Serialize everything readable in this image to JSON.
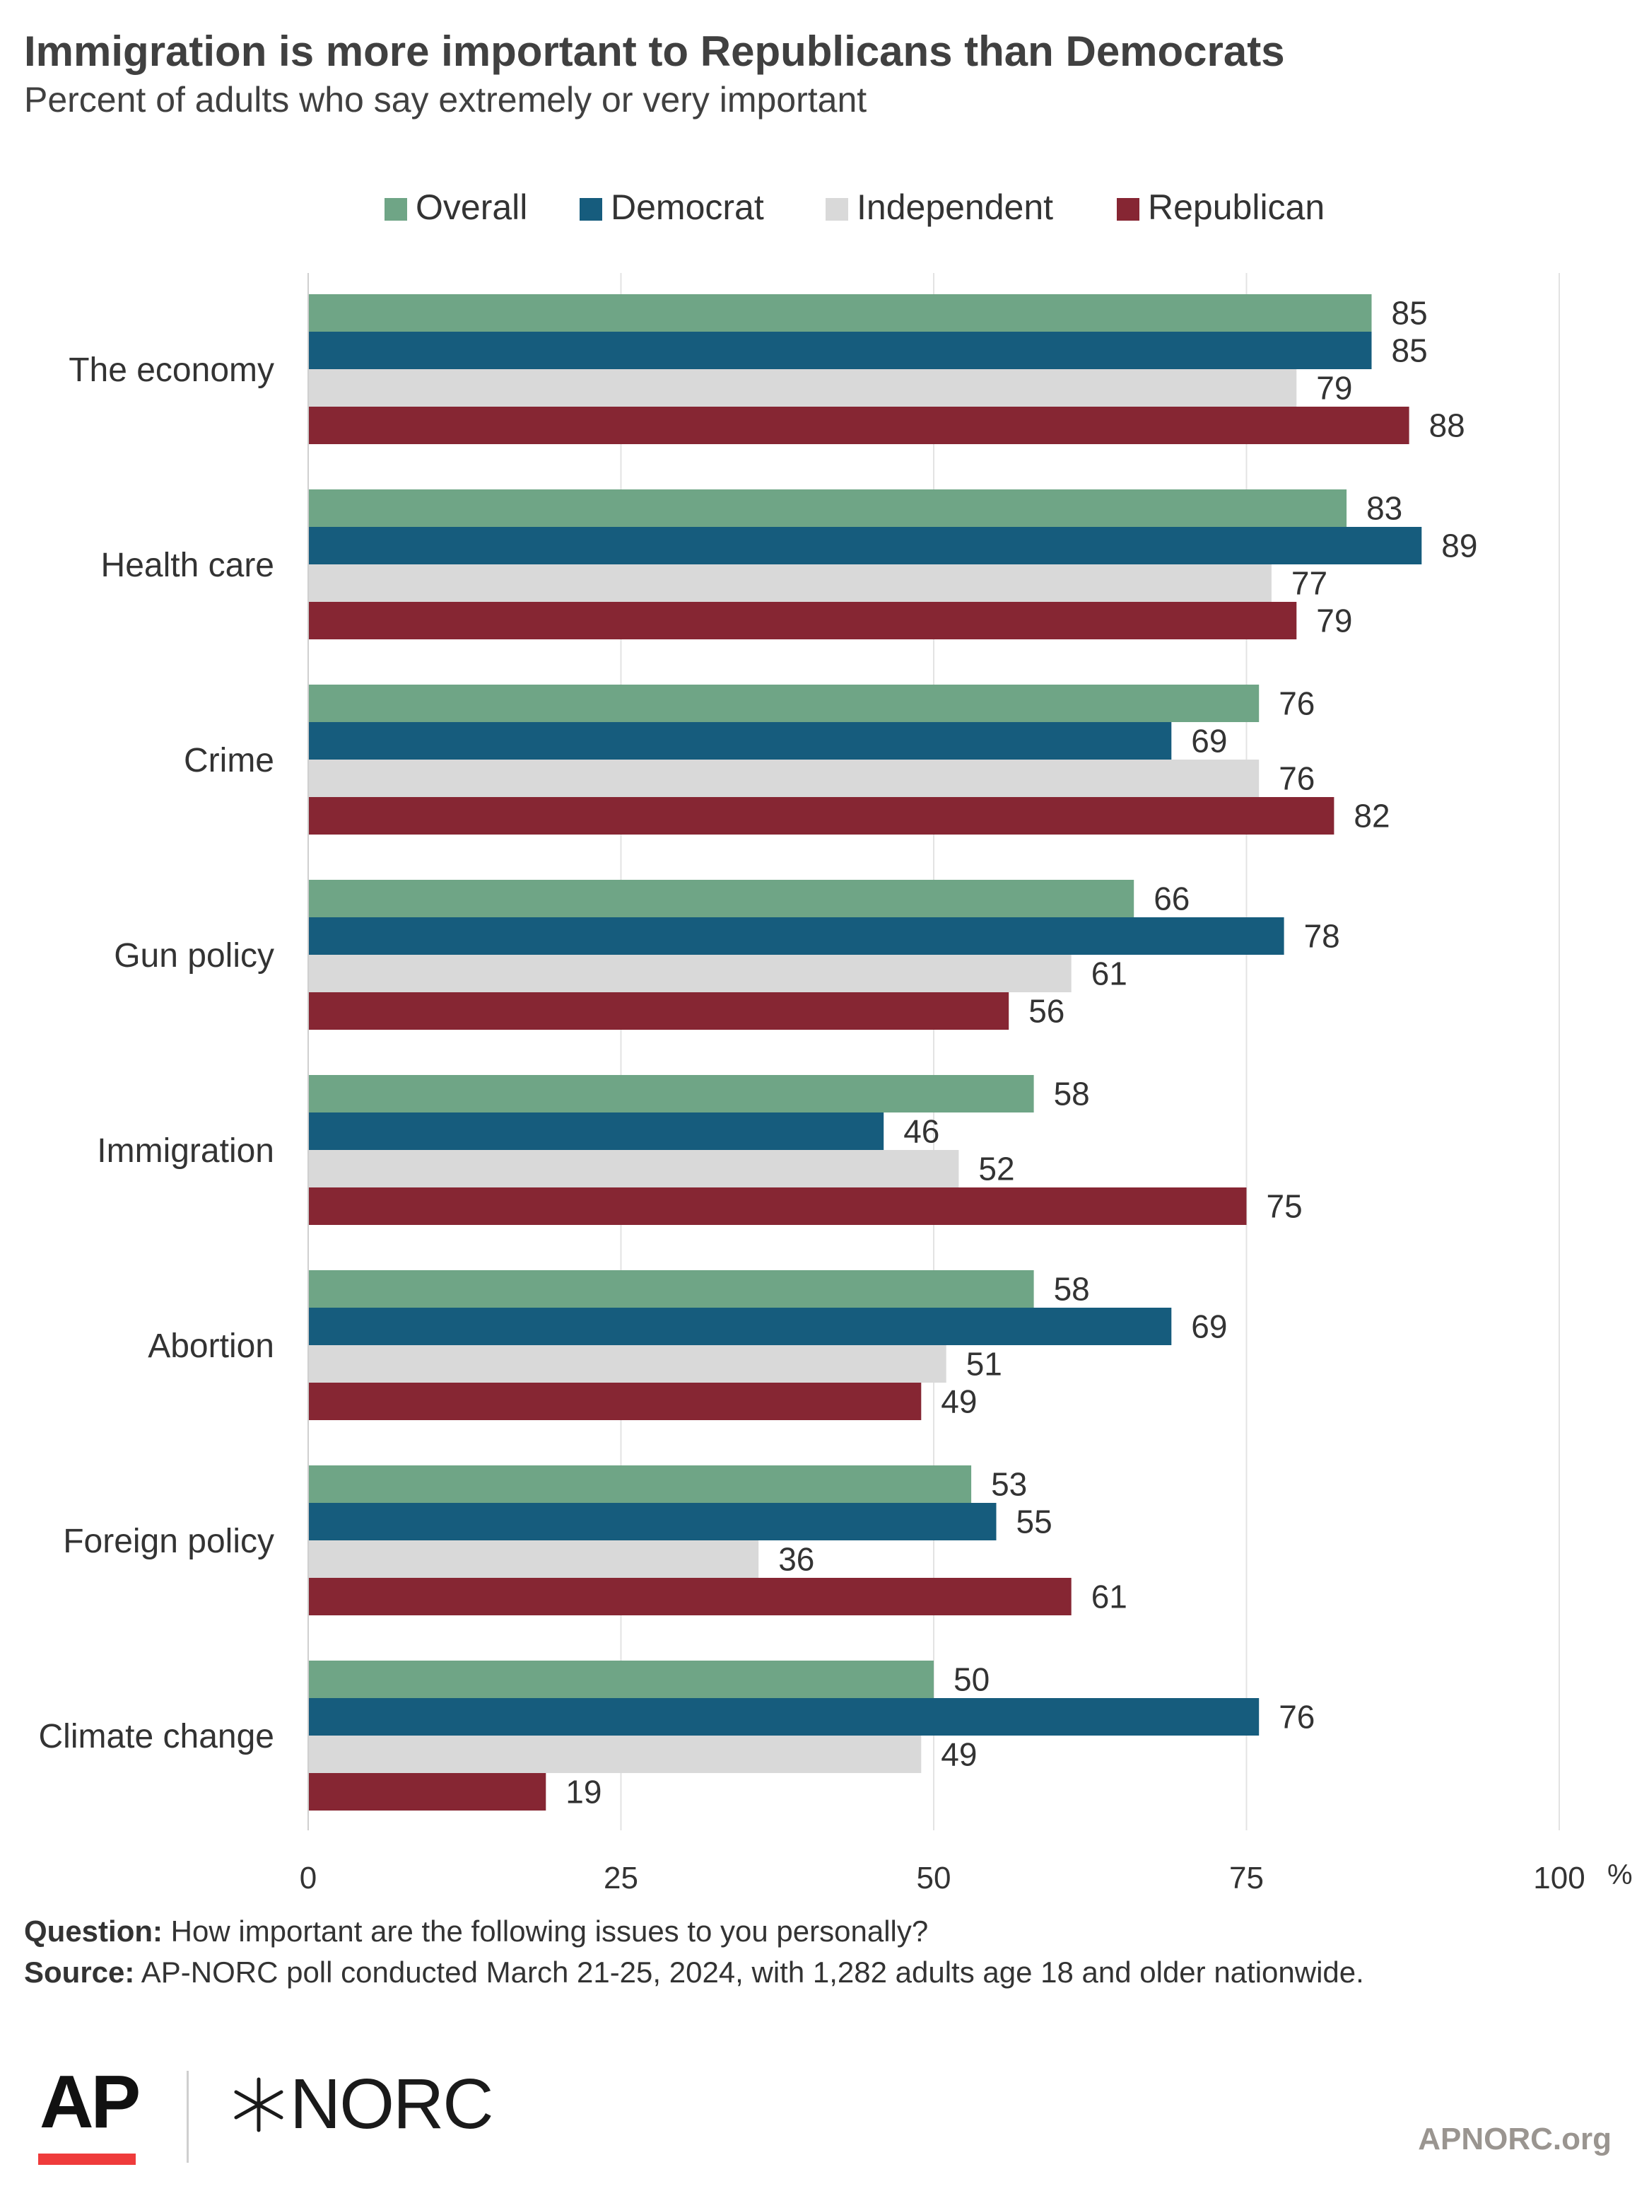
{
  "header": {
    "title": "Immigration is more important to Republicans than Democrats",
    "subtitle": "Percent of adults who say extremely or very important"
  },
  "chart_data": {
    "type": "bar",
    "orientation": "horizontal",
    "categories": [
      "The economy",
      "Health care",
      "Crime",
      "Gun policy",
      "Immigration",
      "Abortion",
      "Foreign policy",
      "Climate change"
    ],
    "series": [
      {
        "name": "Overall",
        "color": "#6fa586",
        "values": [
          85,
          83,
          76,
          66,
          58,
          58,
          53,
          50
        ]
      },
      {
        "name": "Democrat",
        "color": "#165c7d",
        "values": [
          85,
          89,
          69,
          78,
          46,
          69,
          55,
          76
        ]
      },
      {
        "name": "Independent",
        "color": "#d9d9d9",
        "values": [
          79,
          77,
          76,
          61,
          52,
          51,
          36,
          49
        ]
      },
      {
        "name": "Republican",
        "color": "#862633",
        "values": [
          88,
          79,
          82,
          56,
          75,
          49,
          61,
          19
        ]
      }
    ],
    "xlim": [
      0,
      100
    ],
    "xticks": [
      "0",
      "25",
      "50",
      "75",
      "100"
    ],
    "xunit": "%",
    "grid": true,
    "legend": "top",
    "data_labels": true
  },
  "notes": {
    "question_label": "Question:",
    "question_text": "How important are the following issues to you personally?",
    "source_label": "Source:",
    "source_text": "AP-NORC poll conducted March 21-25, 2024, with 1,282 adults age 18 and older nationwide."
  },
  "footer": {
    "logo_ap": "AP",
    "logo_norc": "NORC",
    "url": "APNORC.org"
  }
}
